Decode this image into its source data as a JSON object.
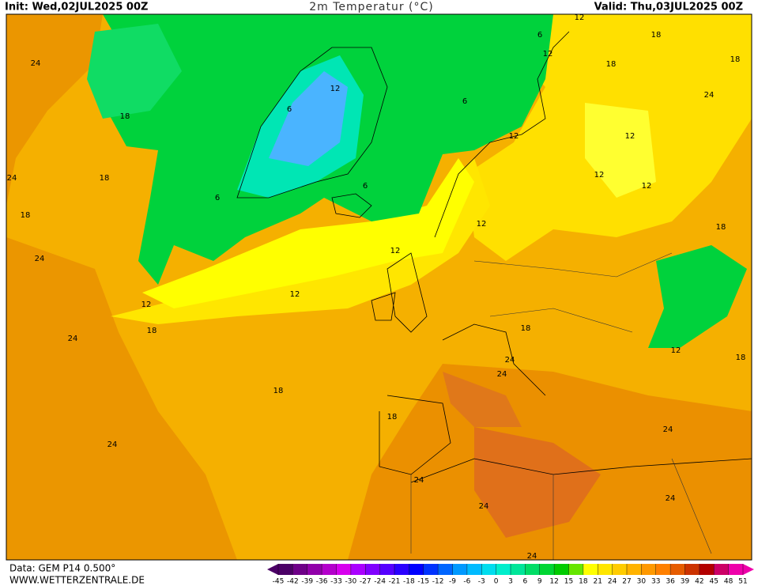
{
  "header": {
    "init": "Init: Wed,02JUL2025 00Z",
    "title": "2m Temperatur (°C)",
    "valid": "Valid: Thu,03JUL2025 00Z"
  },
  "footer": {
    "data": "Data: GEM P14 0.500°",
    "site": "WWW.WETTERZENTRALE.DE"
  },
  "colorbar": {
    "ticks": [
      -45,
      -42,
      -39,
      -36,
      -33,
      -30,
      -27,
      -24,
      -21,
      -18,
      -15,
      -12,
      -9,
      -6,
      -3,
      0,
      3,
      6,
      9,
      12,
      15,
      18,
      21,
      24,
      27,
      30,
      33,
      36,
      39,
      42,
      45,
      48,
      51
    ],
    "colors": [
      "#4b0066",
      "#6e0088",
      "#9100aa",
      "#b400cc",
      "#d700ee",
      "#aa00ff",
      "#8000ff",
      "#5500ff",
      "#2a00ff",
      "#0000ff",
      "#0033ff",
      "#0066ff",
      "#0099ff",
      "#00bbff",
      "#00ddee",
      "#00eecc",
      "#00e699",
      "#00dd66",
      "#00d633",
      "#00cc00",
      "#66e600",
      "#ffff00",
      "#ffe600",
      "#ffcc00",
      "#ffb300",
      "#ff9900",
      "#ff8000",
      "#e65c00",
      "#cc3300",
      "#b30000",
      "#cc0066",
      "#ee00aa"
    ]
  },
  "map": {
    "contour_labels": [
      "24",
      "18",
      "24",
      "18",
      "18",
      "24",
      "12",
      "18",
      "24",
      "18",
      "24",
      "12",
      "12",
      "12",
      "6",
      "6",
      "6",
      "6",
      "6",
      "12",
      "12",
      "12",
      "12",
      "12",
      "12",
      "18",
      "18",
      "18",
      "24",
      "18",
      "12",
      "18",
      "18",
      "24",
      "24",
      "24",
      "24",
      "24",
      "24",
      "18",
      "24",
      "12"
    ]
  }
}
